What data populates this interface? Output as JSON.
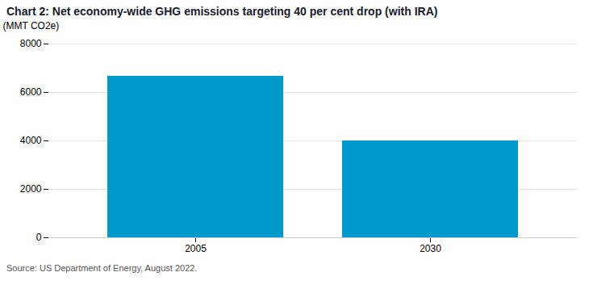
{
  "chart_data": {
    "type": "bar",
    "title": "Chart 2: Net economy-wide GHG emissions targeting 40 per cent drop (with IRA)",
    "categories": [
      "2005",
      "2030"
    ],
    "values": [
      6670,
      4000
    ],
    "color": "#0099CC",
    "ylabel": "(MMT CO2e)",
    "ylim": [
      0,
      8000
    ],
    "yticks": [
      0,
      2000,
      4000,
      6000,
      8000
    ],
    "grid": true,
    "source": "Source: US Department of Energy, August 2022."
  }
}
